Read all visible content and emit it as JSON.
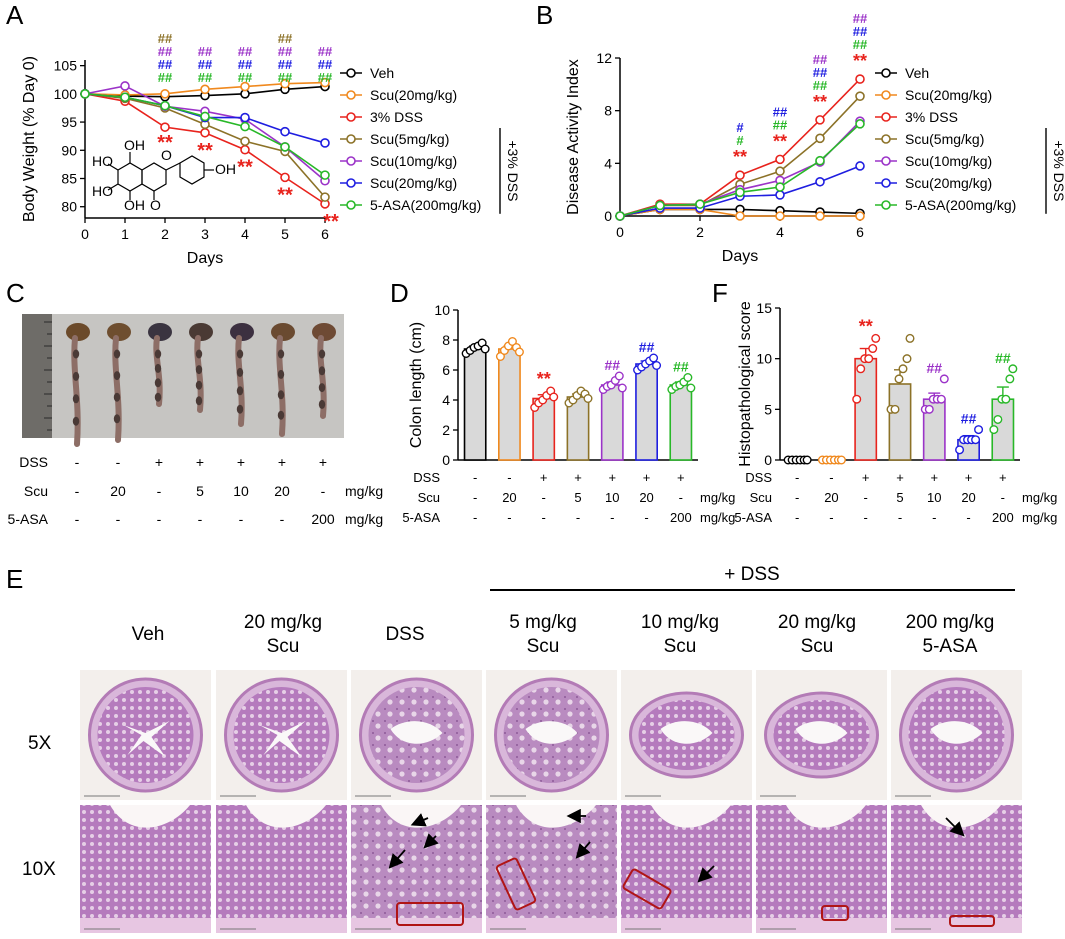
{
  "colors": {
    "veh": "#000000",
    "scu20_alone": "#f0891e",
    "dss": "#e8231d",
    "scu5": "#8c7228",
    "scu10": "#9b33c8",
    "scu20": "#1f1ee0",
    "asa": "#28b828",
    "bar_fill": "#d9d9d9",
    "tissue": "#c79ac9",
    "tissue_dark": "#8c4f9a",
    "photo_bg": "#c8c7c5",
    "box": "#b01515"
  },
  "panels": {
    "A": "A",
    "B": "B",
    "C": "C",
    "D": "D",
    "E": "E",
    "F": "F"
  },
  "chart_data": [
    {
      "panel": "A",
      "type": "line",
      "xlabel": "Days",
      "ylabel": "Body Weight (% Day 0)",
      "x": [
        0,
        1,
        2,
        3,
        4,
        5,
        6
      ],
      "xlim": [
        0,
        6
      ],
      "ylim": [
        78,
        106
      ],
      "yticks": [
        80,
        85,
        90,
        95,
        100,
        105
      ],
      "xticks": [
        0,
        1,
        2,
        3,
        4,
        5,
        6
      ],
      "series": [
        {
          "name": "Veh",
          "key": "veh",
          "values": [
            100,
            99.6,
            99.5,
            99.7,
            100,
            100.8,
            101.3
          ]
        },
        {
          "name": "Scu(20mg/kg)",
          "key": "scu20_alone",
          "values": [
            100,
            99.8,
            100,
            100.8,
            101.3,
            101.8,
            102
          ]
        },
        {
          "name": "3% DSS",
          "key": "dss",
          "values": [
            100,
            98.7,
            94.1,
            93.1,
            90.1,
            85.2,
            80.5
          ]
        },
        {
          "name": "Scu(5mg/kg)",
          "key": "scu5",
          "values": [
            100,
            99.2,
            97.5,
            94.6,
            91.6,
            89.8,
            81.7
          ]
        },
        {
          "name": "Scu(10mg/kg)",
          "key": "scu10",
          "values": [
            100,
            101.4,
            97.8,
            96.9,
            95.5,
            90.6,
            84.6
          ]
        },
        {
          "name": "Scu(20mg/kg)",
          "key": "scu20",
          "values": [
            100,
            99.4,
            97.9,
            95.8,
            95.8,
            93.3,
            91.3
          ]
        },
        {
          "name": "5-ASA(200mg/kg)",
          "key": "asa",
          "values": [
            100,
            99.4,
            97.9,
            96,
            94.2,
            90.6,
            85.6
          ]
        }
      ],
      "annotations": {
        "dss_stars": [
          "**",
          "**",
          "**",
          "**",
          "**"
        ],
        "hash": "##",
        "group_label": "+3% DSS"
      },
      "structure_labels": [
        "OH",
        "HO",
        "HO",
        "OH",
        "OH",
        "O",
        "O"
      ]
    },
    {
      "panel": "B",
      "type": "line",
      "xlabel": "Days",
      "ylabel": "Disease Activity Index",
      "x": [
        0,
        1,
        2,
        3,
        4,
        5,
        6
      ],
      "xlim": [
        0,
        6
      ],
      "ylim": [
        0,
        12
      ],
      "yticks": [
        0,
        4,
        8,
        12
      ],
      "xticks": [
        0,
        2,
        4,
        6
      ],
      "series": [
        {
          "name": "Veh",
          "key": "veh",
          "values": [
            0,
            0.5,
            0.5,
            0.5,
            0.4,
            0.3,
            0.2
          ]
        },
        {
          "name": "Scu(20mg/kg)",
          "key": "scu20_alone",
          "values": [
            0,
            0.5,
            0.5,
            0,
            0,
            0,
            0
          ]
        },
        {
          "name": "3% DSS",
          "key": "dss",
          "values": [
            0,
            0.9,
            0.9,
            3.1,
            4.3,
            7.3,
            10.4
          ]
        },
        {
          "name": "Scu(5mg/kg)",
          "key": "scu5",
          "values": [
            0,
            0.8,
            0.8,
            2.4,
            3.4,
            5.9,
            9.1
          ]
        },
        {
          "name": "Scu(10mg/kg)",
          "key": "scu10",
          "values": [
            0,
            0.8,
            0.9,
            2,
            2.7,
            4.1,
            7.2
          ]
        },
        {
          "name": "Scu(20mg/kg)",
          "key": "scu20",
          "values": [
            0,
            0.6,
            0.6,
            1.5,
            1.6,
            2.6,
            3.8
          ]
        },
        {
          "name": "5-ASA(200mg/kg)",
          "key": "asa",
          "values": [
            0,
            0.8,
            0.9,
            1.8,
            2.2,
            4.2,
            7.0
          ]
        }
      ],
      "annotations": {
        "stars": "**",
        "hash": "##",
        "single_hash": "#",
        "group_label": "+3% DSS"
      }
    },
    {
      "panel": "D",
      "type": "bar",
      "ylabel": "Colon length (cm)",
      "ylim": [
        0,
        10
      ],
      "yticks": [
        0,
        2,
        4,
        6,
        8,
        10
      ],
      "categories": [
        "Veh",
        "Scu20",
        "DSS",
        "Scu5+DSS",
        "Scu10+DSS",
        "Scu20+DSS",
        "5-ASA+DSS"
      ],
      "keys": [
        "veh",
        "scu20_alone",
        "dss",
        "scu5",
        "scu10",
        "scu20",
        "asa"
      ],
      "values": [
        7.4,
        7.4,
        4.1,
        4.2,
        5.0,
        6.4,
        5.0
      ],
      "errors": [
        0.2,
        0.2,
        0.25,
        0.2,
        0.2,
        0.2,
        0.2
      ],
      "points": [
        [
          7.1,
          7.3,
          7.5,
          7.6,
          7.8,
          7.4
        ],
        [
          6.9,
          7.3,
          7.6,
          7.9,
          7.5,
          7.2
        ],
        [
          3.5,
          3.8,
          4.0,
          4.3,
          4.6,
          4.2
        ],
        [
          3.8,
          4.0,
          4.3,
          4.6,
          4.4,
          4.1
        ],
        [
          4.7,
          4.9,
          5.0,
          5.3,
          5.6,
          4.8
        ],
        [
          6.0,
          6.2,
          6.4,
          6.6,
          6.8,
          6.3
        ],
        [
          4.7,
          4.9,
          5.0,
          5.2,
          5.5,
          4.8
        ]
      ],
      "sig": [
        "",
        "",
        "**",
        "",
        "##",
        "##",
        "##"
      ]
    },
    {
      "panel": "F",
      "type": "bar",
      "ylabel": "Histopathological score",
      "ylim": [
        0,
        15
      ],
      "yticks": [
        0,
        5,
        10,
        15
      ],
      "categories": [
        "Veh",
        "Scu20",
        "DSS",
        "Scu5+DSS",
        "Scu10+DSS",
        "Scu20+DSS",
        "5-ASA+DSS"
      ],
      "keys": [
        "veh",
        "scu20_alone",
        "dss",
        "scu5",
        "scu10",
        "scu20",
        "asa"
      ],
      "values": [
        0,
        0,
        10,
        7.5,
        6,
        2,
        6
      ],
      "errors": [
        0,
        0,
        1.0,
        1.4,
        0.6,
        0.4,
        1.2
      ],
      "points": [
        [
          0,
          0,
          0,
          0,
          0,
          0
        ],
        [
          0,
          0,
          0,
          0,
          0,
          0
        ],
        [
          6,
          9,
          10,
          10,
          11,
          12
        ],
        [
          5,
          5,
          8,
          9,
          10,
          12
        ],
        [
          5,
          5,
          6,
          6,
          6,
          8
        ],
        [
          1,
          2,
          2,
          2,
          2,
          3
        ],
        [
          3,
          4,
          6,
          6,
          8,
          9
        ]
      ],
      "sig": [
        "",
        "",
        "**",
        "",
        "##",
        "##",
        "##"
      ]
    }
  ],
  "legend": [
    "Veh",
    "Scu(20mg/kg)",
    "3% DSS",
    "Scu(5mg/kg)",
    "Scu(10mg/kg)",
    "Scu(20mg/kg)",
    "5-ASA(200mg/kg)"
  ],
  "treatment_table": {
    "row_labels": [
      "DSS",
      "Scu",
      "5-ASA"
    ],
    "dss": [
      "-",
      "-",
      "+",
      "+",
      "+",
      "+",
      "+"
    ],
    "scu": [
      "-",
      "20",
      "-",
      "5",
      "10",
      "20",
      "-"
    ],
    "asa": [
      "-",
      "-",
      "-",
      "-",
      "-",
      "-",
      "200"
    ],
    "units": [
      "mg/kg",
      "mg/kg"
    ]
  },
  "histology": {
    "dss_header": "+ DSS",
    "columns": [
      [
        "Veh"
      ],
      [
        "20 mg/kg",
        "Scu"
      ],
      [
        "DSS"
      ],
      [
        "5 mg/kg",
        "Scu"
      ],
      [
        "10 mg/kg",
        "Scu"
      ],
      [
        "20 mg/kg",
        "Scu"
      ],
      [
        "200 mg/kg",
        "5-ASA"
      ]
    ],
    "rows": [
      "5X",
      "10X"
    ]
  }
}
